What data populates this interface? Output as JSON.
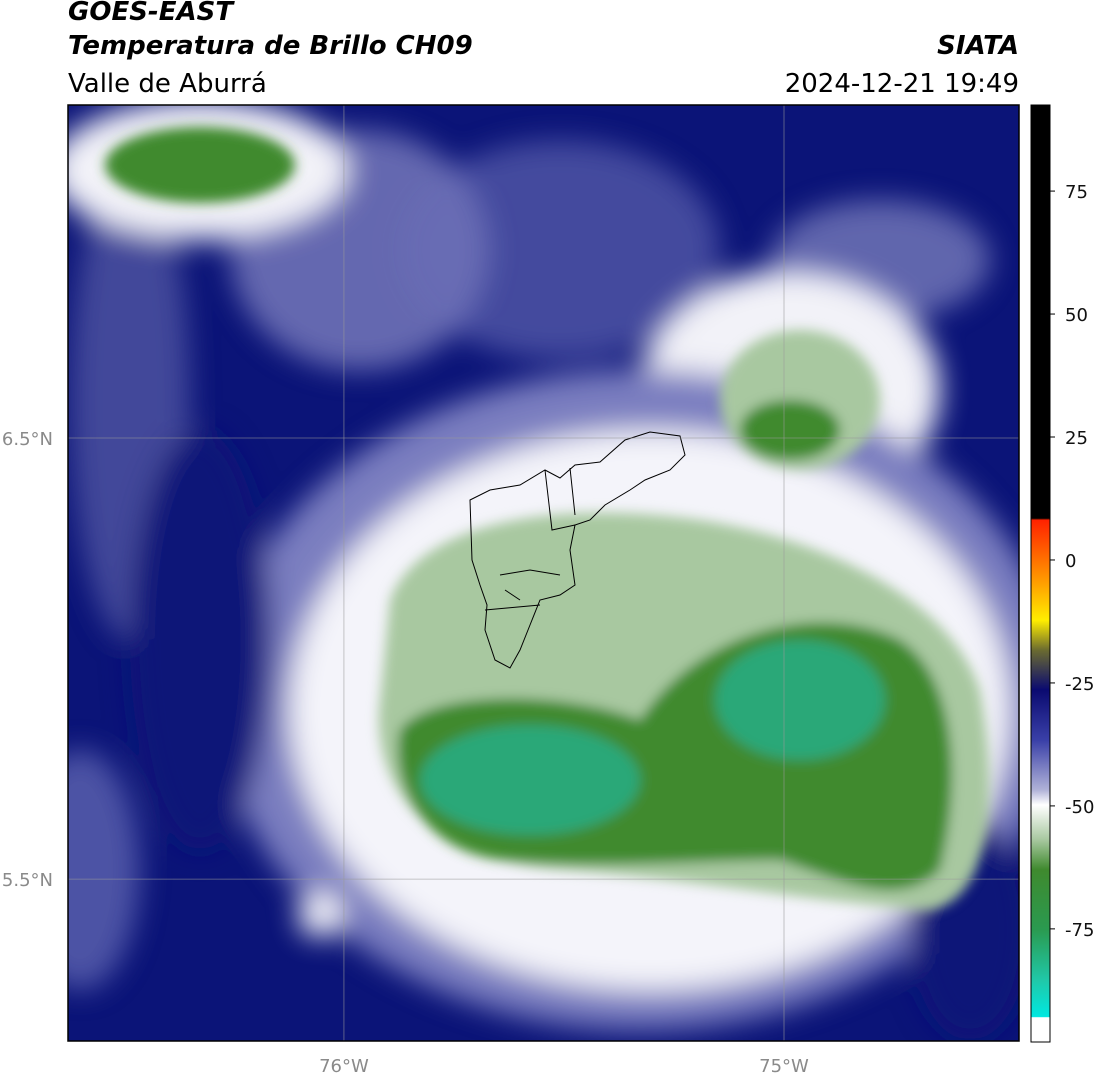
{
  "header": {
    "title": "GOES-EAST",
    "subtitle": "Temperatura de Brillo CH09",
    "region": "Valle de Aburrá",
    "source": "SIATA",
    "timestamp": "2024-12-21 19:49"
  },
  "map": {
    "xlim": [
      -76.627,
      -74.466
    ],
    "ylim": [
      5.133,
      7.255
    ],
    "xticks": [
      {
        "value": -76,
        "label": "76°W"
      },
      {
        "value": -75,
        "label": "75°W"
      }
    ],
    "yticks": [
      {
        "value": 6.5,
        "label": "6.5°N"
      },
      {
        "value": 5.5,
        "label": "5.5°N"
      }
    ],
    "grid": true
  },
  "colorbar": {
    "lim": [
      -98,
      92.5
    ],
    "ticks": [
      75,
      50,
      25,
      0,
      -25,
      -50,
      -75
    ]
  }
}
